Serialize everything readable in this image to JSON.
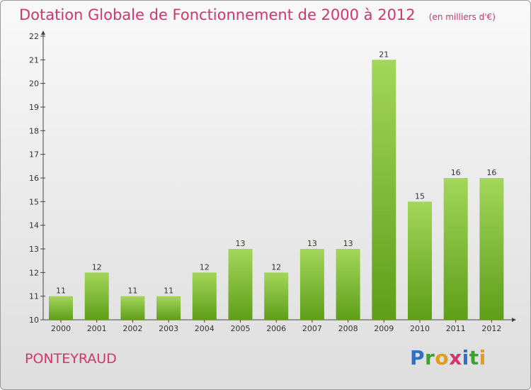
{
  "header": {
    "title": "Dotation Globale de Fonctionnement de 2000 à 2012",
    "unit": "(en milliers d'€)"
  },
  "footer": {
    "commune": "PONTEYRAUD",
    "brand": "Proxiti"
  },
  "colors": {
    "accent": "#d8336c",
    "bar_light": "#a3d65a",
    "bar_dark": "#5e9e18"
  },
  "chart_data": {
    "type": "bar",
    "categories": [
      "2000",
      "2001",
      "2002",
      "2003",
      "2004",
      "2005",
      "2006",
      "2007",
      "2008",
      "2009",
      "2010",
      "2011",
      "2012"
    ],
    "values": [
      11,
      12,
      11,
      11,
      12,
      13,
      12,
      13,
      13,
      21,
      15,
      16,
      16
    ],
    "data_labels": [
      "11",
      "12",
      "11",
      "11",
      "12",
      "13",
      "12",
      "13",
      "13",
      "21",
      "15",
      "16",
      "16"
    ],
    "ylim": [
      10,
      22
    ],
    "yticks": [
      "10",
      "11",
      "12",
      "13",
      "14",
      "15",
      "16",
      "17",
      "18",
      "19",
      "20",
      "21",
      "22"
    ],
    "grid": false,
    "legend": "none"
  }
}
